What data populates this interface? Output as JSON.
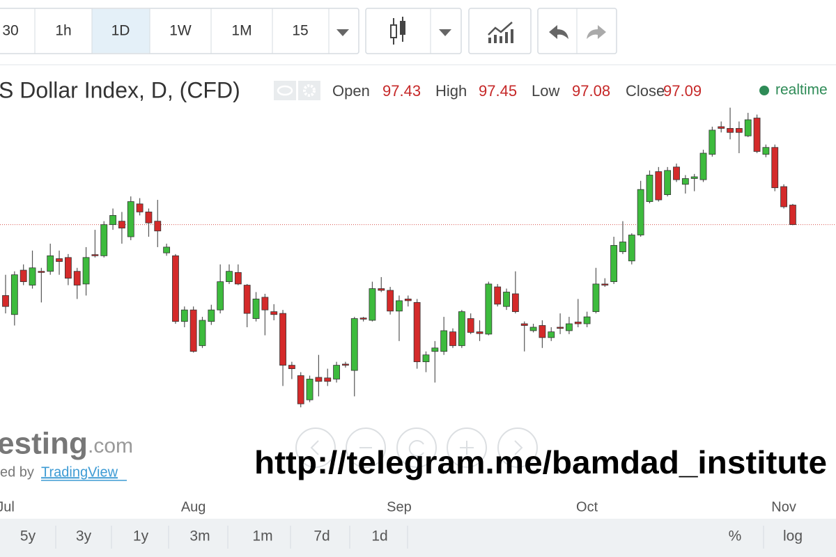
{
  "toolbar": {
    "intervals": [
      "30",
      "1h",
      "1D",
      "1W",
      "1M",
      "15"
    ],
    "active": "1D"
  },
  "header": {
    "title": "S Dollar Index, D, (CFD)",
    "ohlc": [
      {
        "label": "Open",
        "value": 97.43
      },
      {
        "label": "High",
        "value": 97.45
      },
      {
        "label": "Low",
        "value": 97.08
      },
      {
        "label": "Close",
        "value": 97.09
      }
    ],
    "status": "realtime"
  },
  "chart_data": {
    "type": "candlestick",
    "categories": [
      "Jul",
      null,
      null,
      null,
      null,
      null,
      null,
      null,
      null,
      null,
      null,
      null,
      null,
      null,
      null,
      null,
      null,
      null,
      null,
      null,
      null,
      "Aug",
      null,
      null,
      null,
      null,
      null,
      null,
      null,
      null,
      null,
      null,
      null,
      null,
      null,
      null,
      null,
      null,
      null,
      null,
      null,
      null,
      null,
      null,
      "Sep",
      null,
      null,
      null,
      null,
      null,
      null,
      null,
      null,
      null,
      null,
      null,
      null,
      null,
      null,
      null,
      null,
      null,
      null,
      null,
      null,
      "Oct",
      null,
      null,
      null,
      null,
      null,
      null,
      null,
      null,
      null,
      null,
      null,
      null,
      null,
      null,
      null,
      null,
      null,
      null,
      null,
      null,
      null,
      "Nov",
      null
    ],
    "open": [
      95.86,
      95.53,
      96.3,
      96.04,
      96.28,
      96.28,
      96.5,
      96.52,
      96.28,
      96.06,
      96.57,
      96.55,
      97.09,
      97.15,
      96.88,
      97.45,
      97.31,
      97.15,
      96.6,
      96.55,
      95.41,
      95.61,
      94.99,
      95.41,
      95.61,
      96.1,
      96.26,
      96.04,
      95.46,
      95.83,
      95.58,
      95.55,
      94.65,
      94.47,
      94.05,
      94.44,
      94.43,
      94.41,
      94.67,
      94.56,
      95.47,
      95.43,
      95.98,
      95.95,
      95.59,
      95.8,
      95.74,
      94.71,
      94.89,
      94.89,
      95.23,
      94.99,
      95.46,
      95.23,
      95.19,
      96.01,
      95.67,
      95.89,
      95.37,
      95.25,
      95.34,
      95.13,
      95.31,
      95.25,
      95.4,
      95.37,
      95.58,
      96.06,
      96.1,
      96.62,
      96.46,
      96.91,
      97.49,
      98.01,
      97.61,
      98.09,
      97.79,
      97.89,
      97.87,
      98.31,
      98.79,
      98.76,
      98.76,
      98.63,
      98.94,
      98.31,
      98.43,
      97.75,
      97.43
    ],
    "high": [
      96.22,
      96.28,
      96.4,
      96.64,
      96.34,
      96.76,
      96.64,
      96.58,
      96.34,
      96.7,
      97.0,
      97.15,
      97.37,
      97.31,
      97.58,
      97.55,
      97.37,
      97.52,
      96.76,
      96.58,
      95.67,
      95.67,
      95.49,
      95.7,
      96.4,
      96.4,
      96.4,
      96.06,
      95.92,
      95.89,
      95.71,
      95.61,
      94.71,
      94.53,
      94.47,
      94.83,
      94.59,
      94.71,
      94.71,
      95.49,
      95.49,
      96.1,
      96.18,
      96.01,
      95.86,
      95.86,
      95.8,
      94.89,
      95.07,
      95.49,
      95.29,
      95.61,
      95.55,
      95.43,
      96.1,
      96.06,
      95.98,
      96.28,
      95.41,
      95.37,
      95.43,
      95.31,
      95.55,
      95.49,
      95.8,
      95.58,
      96.34,
      96.16,
      96.88,
      97.15,
      96.94,
      97.85,
      98.03,
      98.09,
      98.09,
      98.15,
      97.95,
      97.97,
      98.39,
      98.79,
      98.88,
      99.12,
      98.88,
      99.03,
      99.0,
      98.48,
      98.48,
      97.79,
      97.45
    ],
    "low": [
      95.55,
      95.34,
      96.04,
      95.98,
      95.74,
      96.22,
      96.22,
      96.04,
      95.8,
      95.86,
      96.52,
      96.52,
      97.0,
      96.76,
      96.82,
      97.25,
      96.88,
      96.7,
      96.55,
      95.37,
      95.31,
      94.87,
      94.95,
      95.35,
      95.55,
      96.06,
      96.04,
      95.31,
      95.41,
      95.17,
      95.43,
      94.29,
      94.41,
      93.92,
      94.01,
      94.11,
      94.29,
      94.35,
      94.61,
      94.11,
      95.41,
      95.41,
      95.92,
      95.53,
      95.07,
      95.67,
      94.59,
      94.53,
      94.35,
      94.83,
      94.95,
      94.95,
      95.19,
      95.07,
      95.17,
      95.67,
      95.61,
      95.55,
      94.89,
      95.22,
      94.95,
      95.07,
      95.19,
      95.19,
      95.31,
      95.31,
      95.55,
      96.01,
      96.06,
      96.58,
      96.4,
      96.88,
      97.46,
      97.49,
      97.58,
      97.83,
      97.63,
      97.67,
      97.83,
      98.27,
      98.69,
      98.57,
      98.33,
      98.61,
      98.33,
      98.26,
      97.67,
      97.37,
      97.08
    ],
    "close": [
      95.67,
      96.22,
      96.1,
      96.34,
      96.26,
      96.55,
      96.45,
      96.16,
      96.04,
      96.52,
      96.55,
      97.09,
      97.25,
      97.03,
      97.49,
      97.31,
      97.12,
      96.98,
      96.7,
      95.41,
      95.61,
      94.89,
      95.43,
      95.61,
      96.1,
      96.28,
      96.06,
      95.55,
      95.8,
      95.61,
      95.53,
      94.65,
      94.59,
      93.98,
      94.41,
      94.37,
      94.37,
      94.65,
      94.65,
      95.46,
      95.45,
      95.98,
      95.95,
      95.59,
      95.77,
      95.77,
      94.71,
      94.83,
      94.95,
      95.25,
      94.99,
      95.58,
      95.22,
      95.2,
      96.06,
      95.71,
      95.92,
      95.58,
      95.34,
      95.31,
      95.13,
      95.23,
      95.29,
      95.37,
      95.37,
      95.49,
      96.06,
      96.04,
      96.73,
      96.79,
      96.91,
      97.7,
      97.95,
      97.52,
      98.03,
      97.87,
      97.89,
      97.92,
      98.33,
      98.73,
      98.76,
      98.69,
      98.69,
      98.91,
      98.36,
      98.43,
      97.73,
      97.4,
      97.09
    ],
    "ylim": [
      92.41,
      99.78
    ],
    "up_color": "#3dbb3d",
    "down_color": "#d42a2a",
    "price_line": true
  },
  "watermark": {
    "brand": "esting",
    "brand_suffix": ".com",
    "powered_by": "ed by",
    "link": "TradingView"
  },
  "overlay_text": "http://telegram.me/bamdad_institute",
  "range_buttons": [
    "5y",
    "3y",
    "1y",
    "3m",
    "1m",
    "7d",
    "1d"
  ],
  "scale_buttons": [
    "%",
    "log"
  ]
}
